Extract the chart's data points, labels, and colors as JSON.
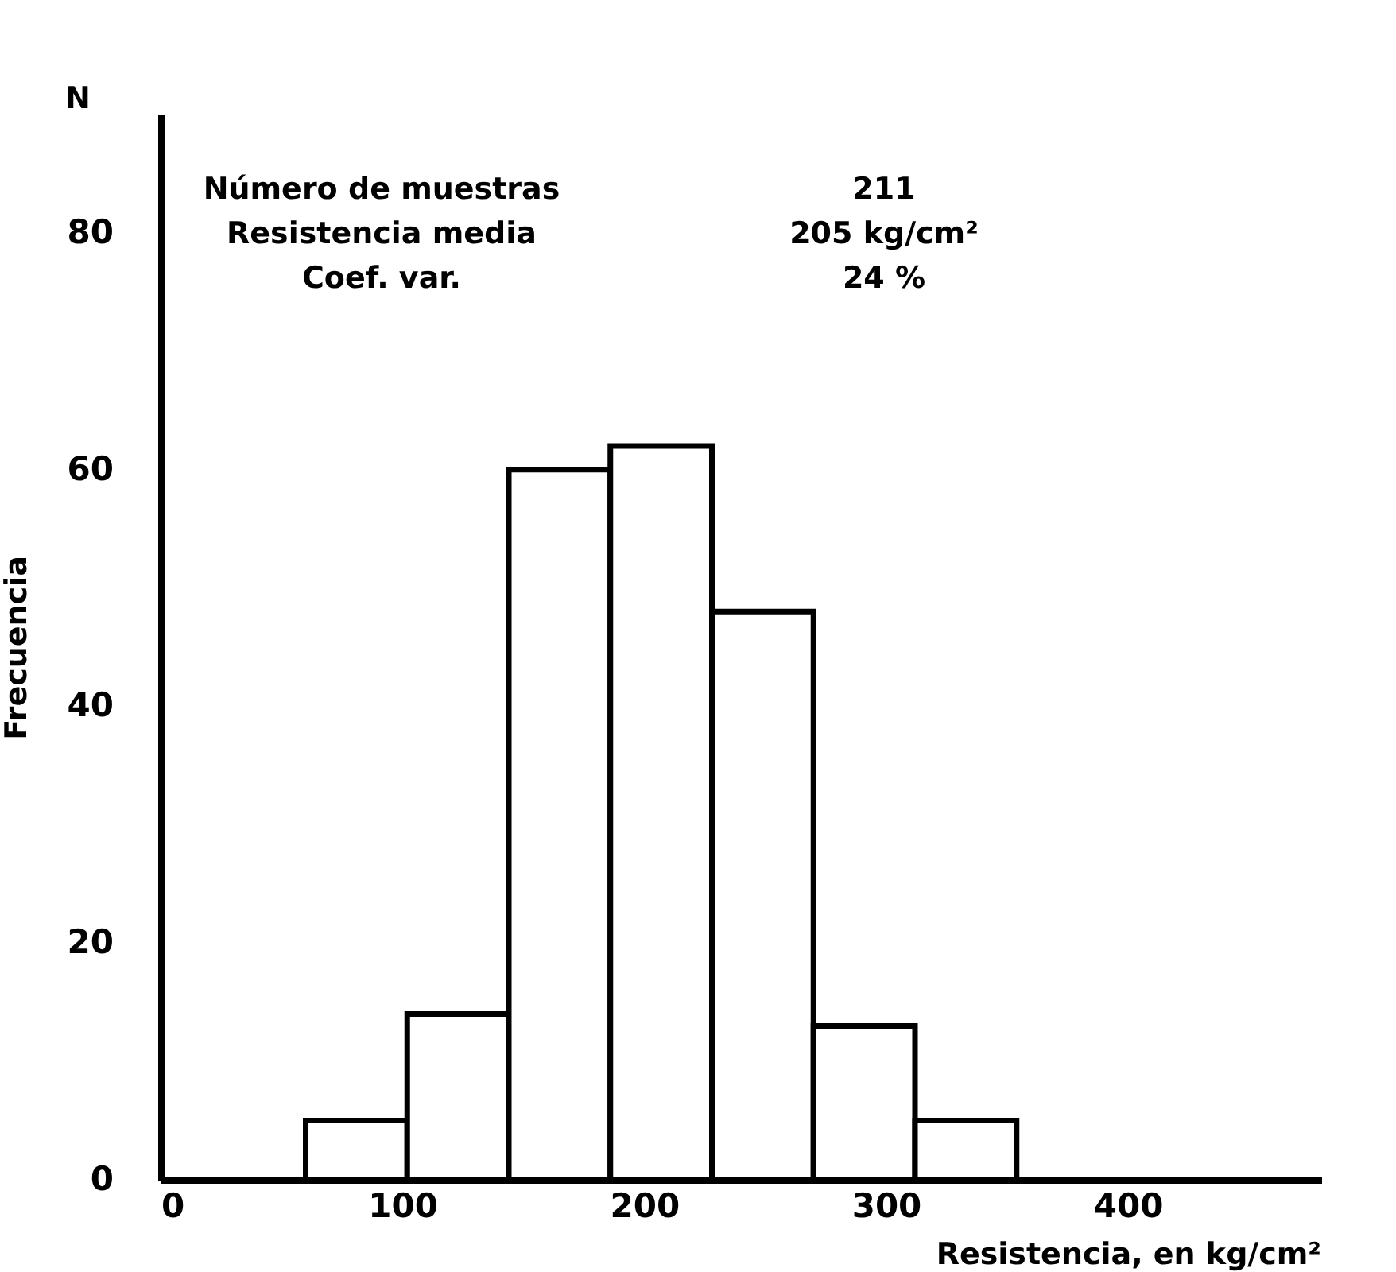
{
  "chart_data": {
    "type": "histogram",
    "xlabel": "Resistencia, en kg/cm²",
    "ylabel": "Frecuencia",
    "bins": [
      60,
      102,
      144,
      186,
      228,
      270,
      312,
      354
    ],
    "values": [
      5,
      14,
      60,
      62,
      48,
      13,
      5
    ],
    "color": "#ffffff",
    "xlim": [
      0,
      480
    ],
    "xticks": [
      0,
      100,
      200,
      300,
      400
    ],
    "ylim": [
      0,
      90
    ],
    "yticks": [
      0,
      20,
      40,
      60,
      80
    ],
    "grid": false,
    "annotations": [
      "N",
      "Número de muestras",
      "211",
      "Resistencia media",
      "205 kg/cm²",
      "Coef. var.",
      "24 %"
    ]
  }
}
